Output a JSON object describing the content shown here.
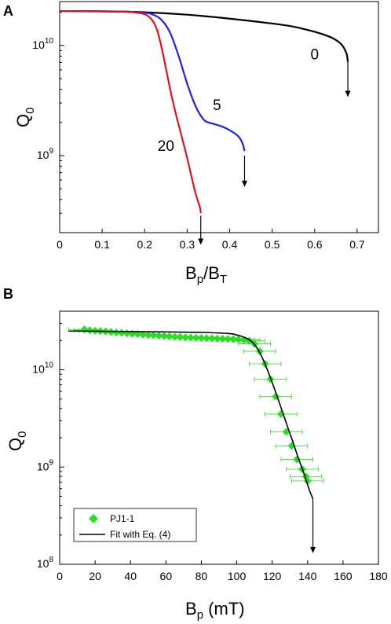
{
  "chart_data": [
    {
      "panel": "A",
      "type": "line",
      "xlabel": {
        "main": "B",
        "sub1": "p",
        "sep": "/B",
        "sub2": "T"
      },
      "ylabel": {
        "main": "Q",
        "sub": "0"
      },
      "xlim": [
        0,
        0.75
      ],
      "ylim": [
        200000000,
        25000000000
      ],
      "yscale": "log",
      "grid": false,
      "x_ticks": [
        "0",
        "0.1",
        "0.2",
        "0.3",
        "0.4",
        "0.5",
        "0.6",
        "0.7"
      ],
      "y_ticks": [
        {
          "base": "10",
          "exp": "10"
        },
        {
          "base": "10",
          "exp": "9"
        }
      ],
      "colors": {
        "0": "#000000",
        "5": "#1f1ff5",
        "20": "#e8101a"
      },
      "series": [
        {
          "name": "0",
          "color": "#000000",
          "x": [
            0.0,
            0.1,
            0.2,
            0.3,
            0.4,
            0.5,
            0.55,
            0.6,
            0.63,
            0.65,
            0.665,
            0.675,
            0.678
          ],
          "y": [
            20500000000,
            20400000000,
            20000000000,
            19000000000,
            17500000000,
            15800000000,
            14800000000,
            13300000000,
            12200000000,
            11200000000,
            10000000000,
            8400000000,
            7100000000
          ]
        },
        {
          "name": "5",
          "color": "#1f1ff5",
          "x": [
            0.0,
            0.15,
            0.2,
            0.22,
            0.24,
            0.26,
            0.28,
            0.3,
            0.32,
            0.34,
            0.36,
            0.38,
            0.4,
            0.42,
            0.43,
            0.435
          ],
          "y": [
            20500000000,
            20300000000,
            19800000000,
            19000000000,
            17000000000,
            13000000000,
            8000000000,
            4500000000,
            2800000000,
            2100000000,
            1950000000,
            1850000000,
            1700000000,
            1500000000,
            1300000000,
            1100000000
          ]
        },
        {
          "name": "20",
          "color": "#e8101a",
          "x": [
            0.0,
            0.15,
            0.18,
            0.2,
            0.21,
            0.22,
            0.23,
            0.24,
            0.25,
            0.26,
            0.27,
            0.28,
            0.29,
            0.3,
            0.31,
            0.32,
            0.33,
            0.332
          ],
          "y": [
            20500000000,
            20200000000,
            19800000000,
            19200000000,
            18200000000,
            16500000000,
            13500000000,
            9500000000,
            6200000000,
            4000000000,
            2700000000,
            1900000000,
            1350000000,
            950000000,
            650000000,
            450000000,
            340000000,
            300000000
          ]
        }
      ],
      "curve_labels": [
        {
          "text": "0",
          "x": 0.6,
          "y": 7500000000
        },
        {
          "text": "5",
          "x": 0.37,
          "y": 2600000000
        },
        {
          "text": "20",
          "x": 0.25,
          "y": 1100000000
        }
      ],
      "arrows": [
        {
          "x": 0.678,
          "y_from": 7100000000,
          "y_to": 3400000000
        },
        {
          "x": 0.435,
          "y_from": 1000000000,
          "y_to": 520000000
        },
        {
          "x": 0.332,
          "y_from": 285000000,
          "y_to": 155000000
        }
      ]
    },
    {
      "panel": "B",
      "type": "scatter",
      "xlabel": {
        "main": "B",
        "sub": "p",
        "rest": " (mT)"
      },
      "ylabel": {
        "main": "Q",
        "sub": "0"
      },
      "xlim": [
        0,
        180
      ],
      "ylim": [
        100000000,
        40000000000
      ],
      "yscale": "log",
      "grid": false,
      "x_ticks": [
        "0",
        "20",
        "40",
        "60",
        "80",
        "100",
        "120",
        "140",
        "160",
        "180"
      ],
      "y_ticks": [
        {
          "base": "10",
          "exp": "10"
        },
        {
          "base": "10",
          "exp": "9"
        },
        {
          "base": "10",
          "exp": "8"
        }
      ],
      "legend_position": "bottom-left",
      "series": [
        {
          "name": "PJ1-1",
          "kind": "points",
          "color": "#27e020",
          "xerr": 9,
          "x": [
            14,
            17,
            20,
            23,
            26,
            29,
            32,
            35,
            38,
            41,
            44,
            47,
            50,
            53,
            56,
            59,
            62,
            65,
            68,
            71,
            74,
            77,
            80,
            83,
            86,
            89,
            92,
            95,
            98,
            101,
            104,
            107,
            110,
            113,
            116,
            119,
            122,
            125,
            128,
            131,
            134,
            137,
            139,
            140
          ],
          "y": [
            26000000000,
            25500000000,
            25200000000,
            25000000000,
            24800000000,
            24500000000,
            24200000000,
            24000000000,
            23700000000,
            23500000000,
            23300000000,
            23000000000,
            22800000000,
            22600000000,
            22400000000,
            22200000000,
            22000000000,
            21800000000,
            21700000000,
            21500000000,
            21400000000,
            21300000000,
            21200000000,
            21100000000,
            21000000000,
            20900000000,
            20800000000,
            20700000000,
            20600000000,
            20500000000,
            20300000000,
            19800000000,
            18500000000,
            15500000000,
            11500000000,
            8000000000,
            5300000000,
            3500000000,
            2300000000,
            1650000000,
            1200000000,
            950000000,
            800000000,
            720000000
          ]
        },
        {
          "name": "Fit with Eq. (4)",
          "kind": "line",
          "color": "#000000",
          "x": [
            5,
            20,
            40,
            60,
            80,
            95,
            100,
            105,
            108,
            111,
            114,
            117,
            120,
            123,
            126,
            129,
            132,
            135,
            138,
            141,
            143
          ],
          "y": [
            25000000000,
            24900000000,
            24700000000,
            24500000000,
            24200000000,
            23600000000,
            22800000000,
            21300000000,
            19800000000,
            17200000000,
            13800000000,
            10300000000,
            7400000000,
            5200000000,
            3600000000,
            2500000000,
            1750000000,
            1200000000,
            850000000,
            580000000,
            470000000
          ]
        }
      ],
      "arrow": {
        "x": 143,
        "y_from": 470000000,
        "y_to": 130000000
      }
    }
  ]
}
